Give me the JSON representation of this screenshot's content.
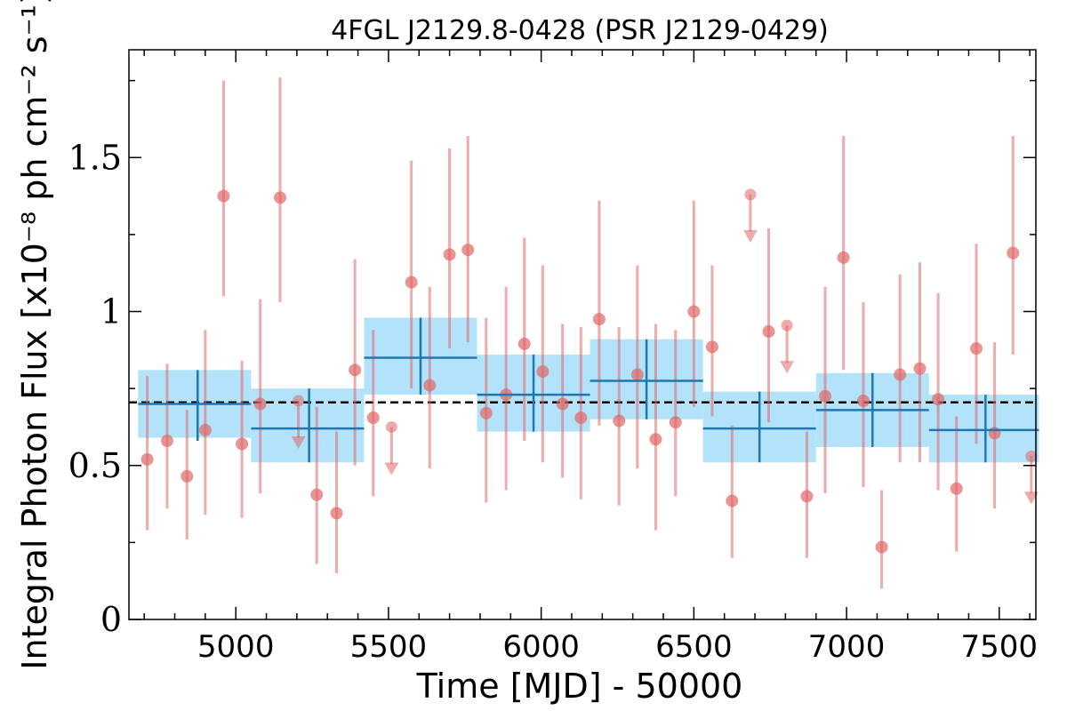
{
  "chart_data": {
    "type": "scatter",
    "title": "4FGL J2129.8-0428 (PSR J2129-0429)",
    "xlabel": "Time [MJD] - 50000",
    "ylabel": "Integral Photon Flux [x10⁻⁸ ph cm⁻² s⁻¹]",
    "xlim": [
      4650,
      7620
    ],
    "ylim": [
      0,
      1.85
    ],
    "xticks": [
      5000,
      5500,
      6000,
      6500,
      7000,
      7500
    ],
    "yticks": [
      0,
      0.5,
      1,
      1.5
    ],
    "ytick_labels": [
      "0",
      "0.5",
      "1",
      "1.5"
    ],
    "average_flux": 0.705,
    "colors": {
      "points": "#e06666",
      "annual_bins": "#1f77b4",
      "annual_band": "#b3e3fb",
      "average_line": "#000000"
    },
    "short_bins": [
      {
        "x": 4710,
        "y": 0.52,
        "lo": 0.29,
        "hi": 0.79
      },
      {
        "x": 4775,
        "y": 0.58,
        "lo": 0.36,
        "hi": 0.83
      },
      {
        "x": 4840,
        "y": 0.465,
        "lo": 0.26,
        "hi": 0.68
      },
      {
        "x": 4900,
        "y": 0.615,
        "lo": 0.34,
        "hi": 0.94
      },
      {
        "x": 4960,
        "y": 1.375,
        "lo": 1.05,
        "hi": 1.75
      },
      {
        "x": 5020,
        "y": 0.57,
        "lo": 0.33,
        "hi": 0.84
      },
      {
        "x": 5080,
        "y": 0.7,
        "lo": 0.41,
        "hi": 1.04
      },
      {
        "x": 5145,
        "y": 1.37,
        "lo": 1.03,
        "hi": 1.76
      },
      {
        "x": 5205,
        "y": 0.71,
        "upper_limit": true
      },
      {
        "x": 5265,
        "y": 0.405,
        "lo": 0.18,
        "hi": 0.69
      },
      {
        "x": 5330,
        "y": 0.345,
        "lo": 0.15,
        "hi": 0.61
      },
      {
        "x": 5390,
        "y": 0.81,
        "lo": 0.5,
        "hi": 1.17
      },
      {
        "x": 5450,
        "y": 0.655,
        "lo": 0.4,
        "hi": 0.94
      },
      {
        "x": 5510,
        "y": 0.625,
        "upper_limit": true
      },
      {
        "x": 5575,
        "y": 1.095,
        "lo": 0.75,
        "hi": 1.49
      },
      {
        "x": 5635,
        "y": 0.76,
        "lo": 0.49,
        "hi": 1.08
      },
      {
        "x": 5700,
        "y": 1.185,
        "lo": 0.88,
        "hi": 1.53
      },
      {
        "x": 5760,
        "y": 1.2,
        "lo": 0.9,
        "hi": 1.57
      },
      {
        "x": 5820,
        "y": 0.67,
        "lo": 0.38,
        "hi": 0.98
      },
      {
        "x": 5885,
        "y": 0.73,
        "lo": 0.42,
        "hi": 1.08
      },
      {
        "x": 5945,
        "y": 0.895,
        "lo": 0.58,
        "hi": 1.24
      },
      {
        "x": 6005,
        "y": 0.805,
        "lo": 0.51,
        "hi": 1.15
      },
      {
        "x": 6070,
        "y": 0.7,
        "lo": 0.46,
        "hi": 0.96
      },
      {
        "x": 6130,
        "y": 0.655,
        "lo": 0.39,
        "hi": 0.95
      },
      {
        "x": 6190,
        "y": 0.975,
        "lo": 0.63,
        "hi": 1.36
      },
      {
        "x": 6255,
        "y": 0.645,
        "lo": 0.37,
        "hi": 0.95
      },
      {
        "x": 6315,
        "y": 0.795,
        "lo": 0.49,
        "hi": 1.15
      },
      {
        "x": 6375,
        "y": 0.585,
        "lo": 0.29,
        "hi": 0.96
      },
      {
        "x": 6440,
        "y": 0.64,
        "lo": 0.4,
        "hi": 0.94
      },
      {
        "x": 6500,
        "y": 1.0,
        "lo": 0.69,
        "hi": 1.36
      },
      {
        "x": 6560,
        "y": 0.885,
        "lo": 0.66,
        "hi": 1.15
      },
      {
        "x": 6625,
        "y": 0.385,
        "lo": 0.2,
        "hi": 0.63
      },
      {
        "x": 6685,
        "y": 1.38,
        "upper_limit": true
      },
      {
        "x": 6745,
        "y": 0.935,
        "lo": 0.64,
        "hi": 1.27
      },
      {
        "x": 6805,
        "y": 0.955,
        "upper_limit": true
      },
      {
        "x": 6870,
        "y": 0.4,
        "lo": 0.2,
        "hi": 0.61
      },
      {
        "x": 6930,
        "y": 0.725,
        "lo": 0.41,
        "hi": 1.08
      },
      {
        "x": 6990,
        "y": 1.175,
        "lo": 0.81,
        "hi": 1.57
      },
      {
        "x": 7055,
        "y": 0.71,
        "lo": 0.43,
        "hi": 1.03
      },
      {
        "x": 7115,
        "y": 0.235,
        "lo": 0.1,
        "hi": 0.42
      },
      {
        "x": 7175,
        "y": 0.795,
        "lo": 0.51,
        "hi": 1.12
      },
      {
        "x": 7240,
        "y": 0.815,
        "lo": 0.51,
        "hi": 1.16
      },
      {
        "x": 7300,
        "y": 0.715,
        "lo": 0.42,
        "hi": 1.06
      },
      {
        "x": 7360,
        "y": 0.425,
        "lo": 0.22,
        "hi": 0.66
      },
      {
        "x": 7425,
        "y": 0.88,
        "lo": 0.57,
        "hi": 1.22
      },
      {
        "x": 7485,
        "y": 0.605,
        "lo": 0.36,
        "hi": 0.9
      },
      {
        "x": 7545,
        "y": 1.19,
        "lo": 0.86,
        "hi": 1.57
      },
      {
        "x": 7605,
        "y": 0.53,
        "upper_limit": true
      }
    ],
    "annual_bins": [
      {
        "x0": 4680,
        "x1": 5050,
        "xc": 4875,
        "y": 0.7,
        "lo": 0.58,
        "hi": 0.81,
        "band_lo": 0.59,
        "band_hi": 0.81
      },
      {
        "x0": 5050,
        "x1": 5420,
        "xc": 5240,
        "y": 0.62,
        "lo": 0.51,
        "hi": 0.75,
        "band_lo": 0.51,
        "band_hi": 0.75
      },
      {
        "x0": 5420,
        "x1": 5790,
        "xc": 5605,
        "y": 0.85,
        "lo": 0.73,
        "hi": 0.98,
        "band_lo": 0.73,
        "band_hi": 0.98
      },
      {
        "x0": 5790,
        "x1": 6160,
        "xc": 5975,
        "y": 0.73,
        "lo": 0.61,
        "hi": 0.86,
        "band_lo": 0.61,
        "band_hi": 0.86
      },
      {
        "x0": 6160,
        "x1": 6530,
        "xc": 6345,
        "y": 0.775,
        "lo": 0.65,
        "hi": 0.91,
        "band_lo": 0.65,
        "band_hi": 0.91
      },
      {
        "x0": 6530,
        "x1": 6900,
        "xc": 6715,
        "y": 0.62,
        "lo": 0.51,
        "hi": 0.74,
        "band_lo": 0.51,
        "band_hi": 0.74
      },
      {
        "x0": 6900,
        "x1": 7270,
        "xc": 7085,
        "y": 0.68,
        "lo": 0.56,
        "hi": 0.8,
        "band_lo": 0.56,
        "band_hi": 0.8
      },
      {
        "x0": 7270,
        "x1": 7630,
        "xc": 7455,
        "y": 0.615,
        "lo": 0.51,
        "hi": 0.73,
        "band_lo": 0.51,
        "band_hi": 0.73
      }
    ]
  }
}
